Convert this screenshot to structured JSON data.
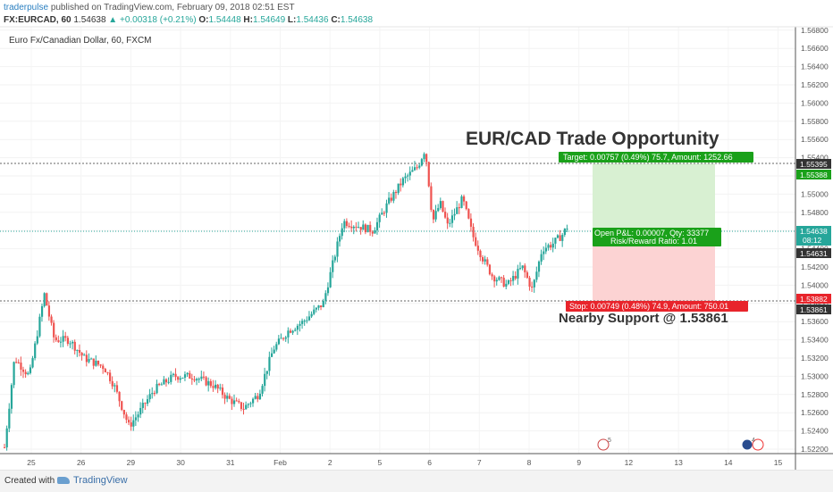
{
  "header": {
    "user": "traderpulse",
    "published": "published on TradingView.com, February 09, 2018 02:51 EST",
    "symbol": "FX:EURCAD, 60",
    "last": "1.54638",
    "change": "▲ +0.00318 (+0.21%)",
    "o_label": "O:",
    "o": "1.54448",
    "h_label": "H:",
    "h": "1.54649",
    "l_label": "L:",
    "l": "1.54436",
    "c_label": "C:",
    "c": "1.54638"
  },
  "chart_title": "Euro Fx/Canadian Dollar, 60, FXCM",
  "annotations": {
    "headline": "EUR/CAD Trade Opportunity",
    "support": "Nearby Support @ 1.53861",
    "target": "Target: 0.00757 (0.49%) 75.7, Amount: 1252.66",
    "open_pl": "Open P&L: 0.00007, Qty: 33377",
    "rr": "Risk/Reward Ratio: 1.01",
    "stop": "Stop: 0.00749 (0.48%) 74.9, Amount: 750.01"
  },
  "price_labels": {
    "p1": "1.55395",
    "p2": "1.55388",
    "current": "1.54638",
    "countdown": "08:12",
    "entry": "1.54631",
    "s1": "1.53882",
    "s2": "1.53861"
  },
  "event_markers": {
    "m1": "5",
    "m2": "4"
  },
  "footer": {
    "created": "Created with",
    "brand": "TradingView"
  },
  "colors": {
    "up": "#26a69a",
    "down": "#ef5350",
    "target_zone": "#d8f0d2",
    "stop_zone": "#fcd3d3",
    "target_label": "#1aa11a",
    "stop_label": "#e8242b"
  },
  "chart_data": {
    "type": "candlestick",
    "ylim": [
      1.5215,
      1.569
    ],
    "y_ticks": [
      "1.56800",
      "1.56600",
      "1.56400",
      "1.56200",
      "1.56000",
      "1.55800",
      "1.55600",
      "1.55400",
      "1.55200",
      "1.55000",
      "1.54800",
      "1.54600",
      "1.54400",
      "1.54200",
      "1.54000",
      "1.53800",
      "1.53600",
      "1.53400",
      "1.53200",
      "1.53000",
      "1.52800",
      "1.52600",
      "1.52400",
      "1.52200"
    ],
    "x_ticks": [
      "25",
      "26",
      "29",
      "30",
      "31",
      "Feb",
      "2",
      "5",
      "6",
      "7",
      "8",
      "9",
      "12",
      "13",
      "14",
      "15"
    ],
    "levels": {
      "target": 1.55395,
      "entry": 1.54631,
      "current": 1.54638,
      "stop": 1.53882,
      "support": 1.53861
    },
    "price_path": [
      [
        0,
        1.5222
      ],
      [
        0.2,
        1.532
      ],
      [
        0.5,
        1.53
      ],
      [
        0.8,
        1.539
      ],
      [
        1.0,
        1.534
      ],
      [
        1.3,
        1.534
      ],
      [
        1.6,
        1.532
      ],
      [
        2.0,
        1.531
      ],
      [
        2.2,
        1.529
      ],
      [
        2.5,
        1.5245
      ],
      [
        2.7,
        1.526
      ],
      [
        3.0,
        1.5285
      ],
      [
        3.4,
        1.53
      ],
      [
        3.8,
        1.53
      ],
      [
        4.2,
        1.529
      ],
      [
        4.5,
        1.5275
      ],
      [
        4.8,
        1.5265
      ],
      [
        5.1,
        1.528
      ],
      [
        5.4,
        1.533
      ],
      [
        5.7,
        1.535
      ],
      [
        6.0,
        1.536
      ],
      [
        6.4,
        1.538
      ],
      [
        6.8,
        1.547
      ],
      [
        7.1,
        1.5465
      ],
      [
        7.4,
        1.546
      ],
      [
        7.7,
        1.549
      ],
      [
        8.0,
        1.5515
      ],
      [
        8.3,
        1.553
      ],
      [
        8.45,
        1.555
      ],
      [
        8.6,
        1.547
      ],
      [
        8.75,
        1.549
      ],
      [
        8.9,
        1.5465
      ],
      [
        9.2,
        1.5495
      ],
      [
        9.4,
        1.5455
      ],
      [
        9.6,
        1.543
      ],
      [
        9.8,
        1.541
      ],
      [
        10.1,
        1.54
      ],
      [
        10.4,
        1.542
      ],
      [
        10.6,
        1.5395
      ],
      [
        10.8,
        1.544
      ],
      [
        11.0,
        1.5445
      ],
      [
        11.2,
        1.5455
      ],
      [
        11.3,
        1.5464
      ]
    ]
  }
}
